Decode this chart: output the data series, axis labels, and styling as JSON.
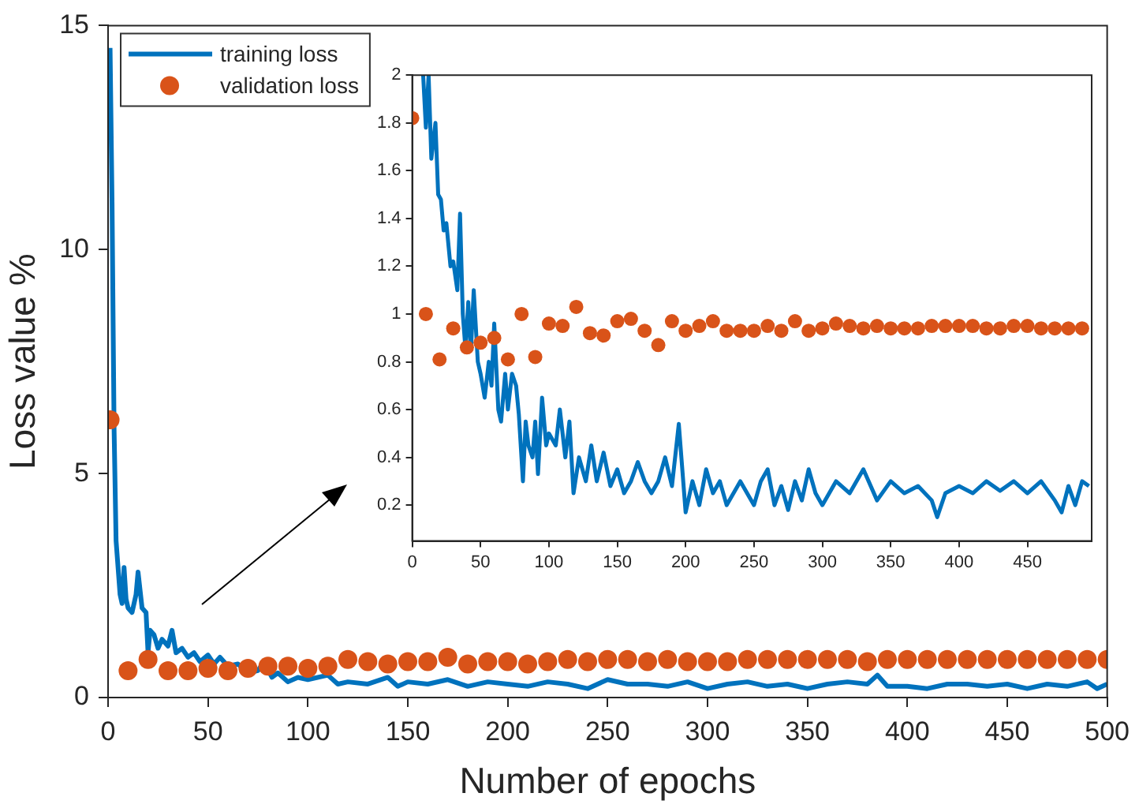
{
  "chart_data": [
    {
      "type": "line",
      "xlabel": "Number of epochs",
      "ylabel": "Loss value %",
      "xlim": [
        0,
        500
      ],
      "xticks": [
        0,
        50,
        100,
        150,
        200,
        250,
        300,
        350,
        400,
        450,
        500
      ],
      "ylim": [
        0,
        15
      ],
      "yticks": [
        0,
        5,
        10,
        15
      ],
      "grid": false,
      "legend": "top left",
      "series": [
        {
          "name": "training loss",
          "type": "line",
          "color": "#0072bd",
          "marker": "none",
          "line_style": "solid",
          "x": [
            1,
            2,
            3,
            4,
            5,
            6,
            7,
            8,
            9,
            10,
            12,
            14,
            15,
            17,
            19,
            20,
            21,
            23,
            25,
            27,
            30,
            32,
            34,
            37,
            40,
            43,
            46,
            50,
            53,
            56,
            60,
            65,
            70,
            75,
            78,
            82,
            85,
            90,
            95,
            100,
            110,
            115,
            120,
            130,
            140,
            145,
            150,
            160,
            170,
            180,
            190,
            200,
            210,
            220,
            230,
            240,
            250,
            260,
            270,
            280,
            290,
            300,
            310,
            320,
            330,
            340,
            350,
            360,
            370,
            380,
            385,
            390,
            400,
            410,
            420,
            430,
            440,
            450,
            460,
            470,
            480,
            490,
            495,
            500
          ],
          "values": [
            14.5,
            11,
            6,
            3.5,
            2.9,
            2.3,
            2.1,
            2.9,
            2.2,
            2.0,
            1.9,
            2.3,
            2.8,
            2.0,
            1.9,
            1.0,
            1.5,
            1.4,
            1.1,
            1.3,
            1.15,
            1.5,
            1.0,
            1.1,
            0.9,
            1.0,
            0.8,
            0.95,
            0.75,
            0.9,
            0.7,
            0.75,
            0.55,
            0.6,
            0.8,
            0.45,
            0.55,
            0.35,
            0.45,
            0.4,
            0.5,
            0.3,
            0.35,
            0.3,
            0.45,
            0.25,
            0.35,
            0.3,
            0.4,
            0.25,
            0.35,
            0.3,
            0.25,
            0.35,
            0.3,
            0.2,
            0.4,
            0.3,
            0.3,
            0.25,
            0.35,
            0.2,
            0.3,
            0.35,
            0.25,
            0.3,
            0.2,
            0.3,
            0.35,
            0.3,
            0.5,
            0.25,
            0.25,
            0.2,
            0.3,
            0.3,
            0.25,
            0.3,
            0.2,
            0.3,
            0.25,
            0.35,
            0.2,
            0.3
          ]
        },
        {
          "name": "validation loss",
          "type": "scatter",
          "color": "#d95319",
          "marker": "circle",
          "x": [
            1,
            10,
            20,
            30,
            40,
            50,
            60,
            70,
            80,
            90,
            100,
            110,
            120,
            130,
            140,
            150,
            160,
            170,
            180,
            190,
            200,
            210,
            220,
            230,
            240,
            250,
            260,
            270,
            280,
            290,
            300,
            310,
            320,
            330,
            340,
            350,
            360,
            370,
            380,
            390,
            400,
            410,
            420,
            430,
            440,
            450,
            460,
            470,
            480,
            490,
            500
          ],
          "values": [
            6.2,
            0.6,
            0.85,
            0.6,
            0.6,
            0.65,
            0.6,
            0.65,
            0.7,
            0.7,
            0.65,
            0.7,
            0.85,
            0.8,
            0.75,
            0.8,
            0.8,
            0.9,
            0.75,
            0.8,
            0.8,
            0.75,
            0.8,
            0.85,
            0.8,
            0.85,
            0.85,
            0.8,
            0.85,
            0.8,
            0.8,
            0.8,
            0.85,
            0.85,
            0.85,
            0.85,
            0.85,
            0.85,
            0.8,
            0.85,
            0.85,
            0.85,
            0.85,
            0.85,
            0.85,
            0.85,
            0.85,
            0.85,
            0.85,
            0.85,
            0.85
          ]
        }
      ]
    },
    {
      "type": "line",
      "xlim": [
        0,
        497
      ],
      "xticks": [
        0,
        50,
        100,
        150,
        200,
        250,
        300,
        350,
        400,
        450
      ],
      "ylim": [
        0.05,
        2
      ],
      "yticks": [
        0.2,
        0.4,
        0.6,
        0.8,
        1,
        1.2,
        1.4,
        1.6,
        1.8,
        2
      ],
      "grid": false,
      "legend": false,
      "series": [
        {
          "type": "line",
          "color": "#0072bd",
          "marker": "none",
          "line_style": "solid",
          "x": [
            8,
            10,
            12,
            14,
            17,
            19,
            21,
            23,
            25,
            28,
            30,
            33,
            35,
            37,
            39,
            41,
            43,
            45,
            48,
            50,
            53,
            56,
            58,
            60,
            63,
            65,
            68,
            70,
            73,
            76,
            78,
            81,
            83,
            85,
            88,
            90,
            92,
            95,
            98,
            100,
            105,
            108,
            112,
            115,
            118,
            122,
            127,
            131,
            135,
            140,
            145,
            150,
            155,
            160,
            165,
            170,
            175,
            180,
            185,
            190,
            195,
            200,
            205,
            210,
            215,
            220,
            225,
            230,
            240,
            250,
            255,
            260,
            265,
            270,
            275,
            280,
            285,
            290,
            295,
            300,
            310,
            320,
            330,
            340,
            350,
            360,
            370,
            380,
            384,
            390,
            400,
            410,
            420,
            430,
            440,
            450,
            460,
            470,
            475,
            480,
            485,
            490,
            495
          ],
          "values": [
            2.0,
            1.78,
            2.0,
            1.65,
            1.8,
            1.5,
            1.48,
            1.35,
            1.38,
            1.2,
            1.22,
            1.1,
            1.42,
            1.0,
            0.85,
            1.05,
            0.85,
            1.1,
            0.8,
            0.75,
            0.65,
            0.8,
            0.7,
            0.96,
            0.6,
            0.55,
            0.75,
            0.6,
            0.75,
            0.7,
            0.58,
            0.3,
            0.55,
            0.45,
            0.4,
            0.55,
            0.33,
            0.65,
            0.45,
            0.5,
            0.45,
            0.6,
            0.4,
            0.55,
            0.25,
            0.4,
            0.3,
            0.45,
            0.3,
            0.42,
            0.28,
            0.35,
            0.25,
            0.3,
            0.38,
            0.3,
            0.25,
            0.3,
            0.4,
            0.28,
            0.54,
            0.17,
            0.3,
            0.2,
            0.35,
            0.25,
            0.3,
            0.2,
            0.3,
            0.2,
            0.3,
            0.35,
            0.2,
            0.28,
            0.18,
            0.3,
            0.22,
            0.35,
            0.25,
            0.2,
            0.3,
            0.25,
            0.35,
            0.22,
            0.3,
            0.25,
            0.28,
            0.22,
            0.15,
            0.25,
            0.28,
            0.25,
            0.3,
            0.26,
            0.3,
            0.25,
            0.3,
            0.22,
            0.17,
            0.28,
            0.2,
            0.3,
            0.28
          ]
        },
        {
          "type": "scatter",
          "color": "#d95319",
          "marker": "circle",
          "x": [
            0,
            10,
            20,
            30,
            40,
            50,
            60,
            70,
            80,
            90,
            100,
            110,
            120,
            130,
            140,
            150,
            160,
            170,
            180,
            190,
            200,
            210,
            220,
            230,
            240,
            250,
            260,
            270,
            280,
            290,
            300,
            310,
            320,
            330,
            340,
            350,
            360,
            370,
            380,
            390,
            400,
            410,
            420,
            430,
            440,
            450,
            460,
            470,
            480,
            490
          ],
          "values": [
            1.82,
            1.0,
            0.81,
            0.94,
            0.86,
            0.88,
            0.9,
            0.81,
            1.0,
            0.82,
            0.96,
            0.95,
            1.03,
            0.92,
            0.91,
            0.97,
            0.98,
            0.93,
            0.87,
            0.97,
            0.93,
            0.95,
            0.97,
            0.93,
            0.93,
            0.93,
            0.95,
            0.93,
            0.97,
            0.93,
            0.94,
            0.96,
            0.95,
            0.94,
            0.95,
            0.94,
            0.94,
            0.94,
            0.95,
            0.95,
            0.95,
            0.95,
            0.94,
            0.94,
            0.95,
            0.95,
            0.94,
            0.94,
            0.94,
            0.94
          ]
        }
      ]
    }
  ]
}
